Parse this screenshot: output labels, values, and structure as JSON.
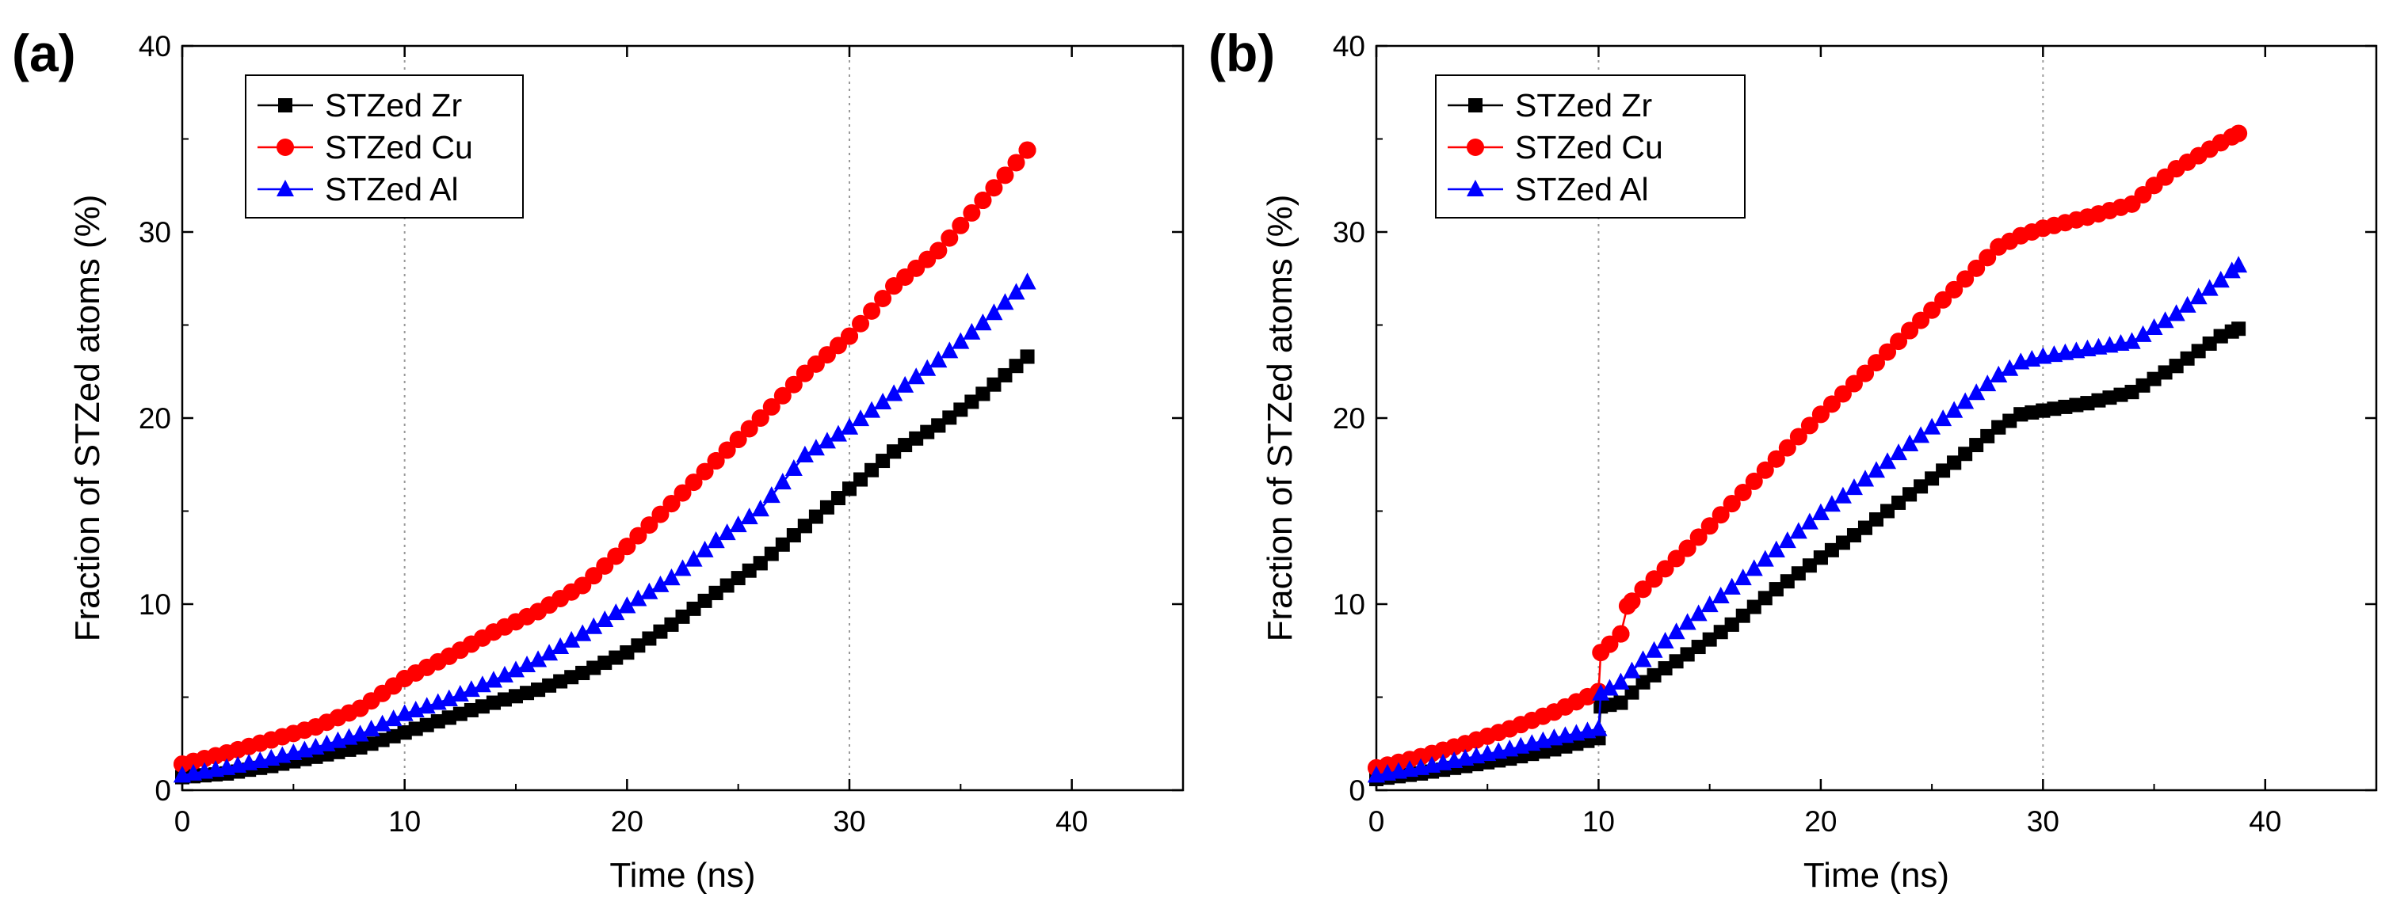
{
  "chart_data": [
    {
      "type": "line",
      "panel_label": "(a)",
      "xlabel": "Time (ns)",
      "ylabel": "Fraction of STZed atoms (%)",
      "xlim": [
        0,
        45
      ],
      "ylim": [
        0,
        40
      ],
      "xticks": [
        "0",
        "10",
        "20",
        "30",
        "40"
      ],
      "yticks": [
        "0",
        "10",
        "20",
        "30",
        "40"
      ],
      "grid": "dotted vertical lines at x = 10 and x = 30",
      "legend_position": "top-left",
      "series": [
        {
          "name": "STZed Zr",
          "color": "#000000",
          "marker": "square",
          "points": [
            [
              0,
              0.7
            ],
            [
              2,
              0.9
            ],
            [
              4,
              1.3
            ],
            [
              6,
              1.8
            ],
            [
              8,
              2.3
            ],
            [
              10,
              3.1
            ],
            [
              12,
              3.9
            ],
            [
              14,
              4.7
            ],
            [
              16,
              5.4
            ],
            [
              18,
              6.3
            ],
            [
              20,
              7.4
            ],
            [
              22,
              8.9
            ],
            [
              24,
              10.6
            ],
            [
              26,
              12.2
            ],
            [
              28,
              14.2
            ],
            [
              30,
              16.2
            ],
            [
              32,
              18.2
            ],
            [
              34,
              19.6
            ],
            [
              36,
              21.3
            ],
            [
              38,
              23.3
            ]
          ]
        },
        {
          "name": "STZed Cu",
          "color": "#ff0000",
          "marker": "circle",
          "points": [
            [
              0,
              1.4
            ],
            [
              2,
              2.0
            ],
            [
              4,
              2.7
            ],
            [
              6,
              3.4
            ],
            [
              8,
              4.4
            ],
            [
              10,
              6.0
            ],
            [
              12,
              7.2
            ],
            [
              14,
              8.5
            ],
            [
              16,
              9.6
            ],
            [
              18,
              11.0
            ],
            [
              20,
              13.1
            ],
            [
              22,
              15.4
            ],
            [
              24,
              17.7
            ],
            [
              26,
              20.0
            ],
            [
              28,
              22.4
            ],
            [
              30,
              24.4
            ],
            [
              32,
              27.1
            ],
            [
              34,
              29.0
            ],
            [
              36,
              31.7
            ],
            [
              38,
              34.4
            ]
          ]
        },
        {
          "name": "STZed Al",
          "color": "#0000ff",
          "marker": "triangle",
          "points": [
            [
              0,
              0.8
            ],
            [
              2,
              1.2
            ],
            [
              4,
              1.7
            ],
            [
              6,
              2.3
            ],
            [
              8,
              3.0
            ],
            [
              10,
              4.1
            ],
            [
              12,
              4.9
            ],
            [
              14,
              5.9
            ],
            [
              16,
              7.0
            ],
            [
              18,
              8.4
            ],
            [
              20,
              9.9
            ],
            [
              22,
              11.4
            ],
            [
              24,
              13.4
            ],
            [
              26,
              15.1
            ],
            [
              28,
              18.0
            ],
            [
              30,
              19.5
            ],
            [
              32,
              21.3
            ],
            [
              34,
              23.1
            ],
            [
              36,
              25.1
            ],
            [
              38,
              27.3
            ]
          ]
        }
      ]
    },
    {
      "type": "line",
      "panel_label": "(b)",
      "xlabel": "Time (ns)",
      "ylabel": "Fraction of STZed atoms (%)",
      "xlim": [
        0,
        45
      ],
      "ylim": [
        0,
        40
      ],
      "xticks": [
        "0",
        "10",
        "20",
        "30",
        "40"
      ],
      "yticks": [
        "0",
        "10",
        "20",
        "30",
        "40"
      ],
      "grid": "dotted vertical lines at x = 10 and x = 30",
      "legend_position": "top-left",
      "series": [
        {
          "name": "STZed Zr",
          "color": "#000000",
          "marker": "square",
          "points": [
            [
              0,
              0.6
            ],
            [
              2,
              0.9
            ],
            [
              4,
              1.3
            ],
            [
              6,
              1.7
            ],
            [
              8,
              2.2
            ],
            [
              10,
              2.8
            ],
            [
              10.1,
              4.5
            ],
            [
              11,
              4.7
            ],
            [
              12,
              5.8
            ],
            [
              14,
              7.3
            ],
            [
              16,
              8.9
            ],
            [
              18,
              10.8
            ],
            [
              20,
              12.5
            ],
            [
              22,
              14.1
            ],
            [
              24,
              15.9
            ],
            [
              26,
              17.6
            ],
            [
              28,
              19.5
            ],
            [
              29,
              20.2
            ],
            [
              30,
              20.4
            ],
            [
              32,
              20.8
            ],
            [
              34,
              21.4
            ],
            [
              36,
              22.8
            ],
            [
              38,
              24.4
            ],
            [
              38.8,
              24.8
            ]
          ]
        },
        {
          "name": "STZed Cu",
          "color": "#ff0000",
          "marker": "circle",
          "points": [
            [
              0,
              1.2
            ],
            [
              2,
              1.8
            ],
            [
              4,
              2.5
            ],
            [
              6,
              3.3
            ],
            [
              8,
              4.2
            ],
            [
              10,
              5.3
            ],
            [
              10.1,
              7.4
            ],
            [
              11,
              8.4
            ],
            [
              11.3,
              9.9
            ],
            [
              12,
              10.8
            ],
            [
              14,
              13.0
            ],
            [
              16,
              15.4
            ],
            [
              18,
              17.8
            ],
            [
              20,
              20.2
            ],
            [
              22,
              22.4
            ],
            [
              24,
              24.7
            ],
            [
              26,
              26.9
            ],
            [
              28,
              29.2
            ],
            [
              29,
              29.8
            ],
            [
              30,
              30.2
            ],
            [
              32,
              30.8
            ],
            [
              34,
              31.5
            ],
            [
              35,
              32.5
            ],
            [
              36,
              33.4
            ],
            [
              38,
              34.8
            ],
            [
              38.8,
              35.3
            ]
          ]
        },
        {
          "name": "STZed Al",
          "color": "#0000ff",
          "marker": "triangle",
          "points": [
            [
              0,
              0.8
            ],
            [
              2,
              1.2
            ],
            [
              4,
              1.7
            ],
            [
              6,
              2.2
            ],
            [
              8,
              2.8
            ],
            [
              10,
              3.3
            ],
            [
              10.1,
              5.2
            ],
            [
              11,
              5.8
            ],
            [
              12,
              7.0
            ],
            [
              14,
              9.0
            ],
            [
              16,
              10.9
            ],
            [
              18,
              12.9
            ],
            [
              20,
              14.9
            ],
            [
              22,
              16.7
            ],
            [
              24,
              18.6
            ],
            [
              26,
              20.4
            ],
            [
              28,
              22.3
            ],
            [
              29,
              23.0
            ],
            [
              30,
              23.3
            ],
            [
              32,
              23.7
            ],
            [
              34,
              24.1
            ],
            [
              36,
              25.6
            ],
            [
              38,
              27.4
            ],
            [
              38.8,
              28.2
            ]
          ]
        }
      ]
    }
  ]
}
